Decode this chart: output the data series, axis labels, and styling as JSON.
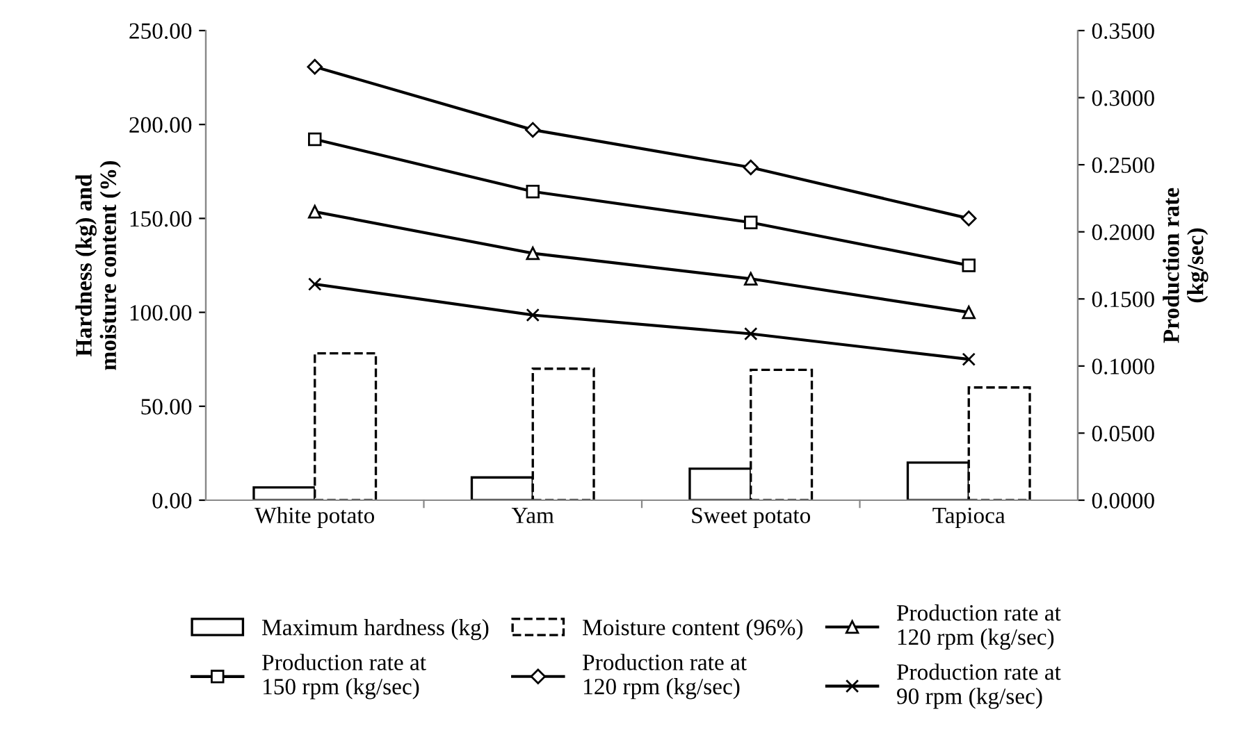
{
  "chart_data": {
    "type": "bar",
    "categories": [
      "White potato",
      "Yam",
      "Sweet potato",
      "Tapioca"
    ],
    "ylabel": "Hardness (kg) and\nmoisture content (%)",
    "y2label": "Production rate\n(kg/sec)",
    "ylim": [
      0,
      250
    ],
    "yticks": [
      {
        "value": 0,
        "label": "0.00"
      },
      {
        "value": 50,
        "label": "50.00"
      },
      {
        "value": 100,
        "label": "100.00"
      },
      {
        "value": 150,
        "label": "150.00"
      },
      {
        "value": 200,
        "label": "200.00"
      },
      {
        "value": 250,
        "label": "250.00"
      }
    ],
    "y2lim": [
      0,
      0.35
    ],
    "y2ticks": [
      {
        "value": 0,
        "label": "0.0000"
      },
      {
        "value": 0.05,
        "label": "0.0500"
      },
      {
        "value": 0.1,
        "label": "0.1000"
      },
      {
        "value": 0.15,
        "label": "0.1500"
      },
      {
        "value": 0.2,
        "label": "0.2000"
      },
      {
        "value": 0.25,
        "label": "0.2500"
      },
      {
        "value": 0.3,
        "label": "0.3000"
      },
      {
        "value": 0.35,
        "label": "0.3500"
      }
    ],
    "grid": false,
    "legend": "bottom",
    "series": [
      {
        "name": "Maximum hardness (kg)",
        "color": "#000000",
        "line_style": "solid",
        "values": [
          6.8,
          12.1,
          16.8,
          20.0
        ]
      },
      {
        "name": "Moisture content (96%)",
        "color": "#000000",
        "line_style": "dashed",
        "values": [
          78.2,
          70.0,
          69.4,
          60.0
        ]
      },
      {
        "name": "Production rate at\n120 rpm (kg/sec)",
        "type": "line",
        "axis": "y2",
        "color": "#000000",
        "marker": "triangle",
        "values": [
          0.215,
          0.184,
          0.165,
          0.14
        ]
      },
      {
        "name": "Production rate at\n150 rpm (kg/sec)",
        "type": "line",
        "axis": "y2",
        "color": "#000000",
        "marker": "square",
        "values": [
          0.269,
          0.23,
          0.207,
          0.175
        ]
      },
      {
        "name": "Production rate at\n120 rpm (kg/sec)",
        "type": "line",
        "axis": "y2",
        "color": "#000000",
        "marker": "diamond",
        "values": [
          0.323,
          0.276,
          0.248,
          0.21
        ]
      },
      {
        "name": "Production rate at\n90 rpm (kg/sec)",
        "type": "line",
        "axis": "y2",
        "color": "#000000",
        "marker": "cross",
        "values": [
          0.161,
          0.138,
          0.124,
          0.105
        ]
      }
    ]
  }
}
